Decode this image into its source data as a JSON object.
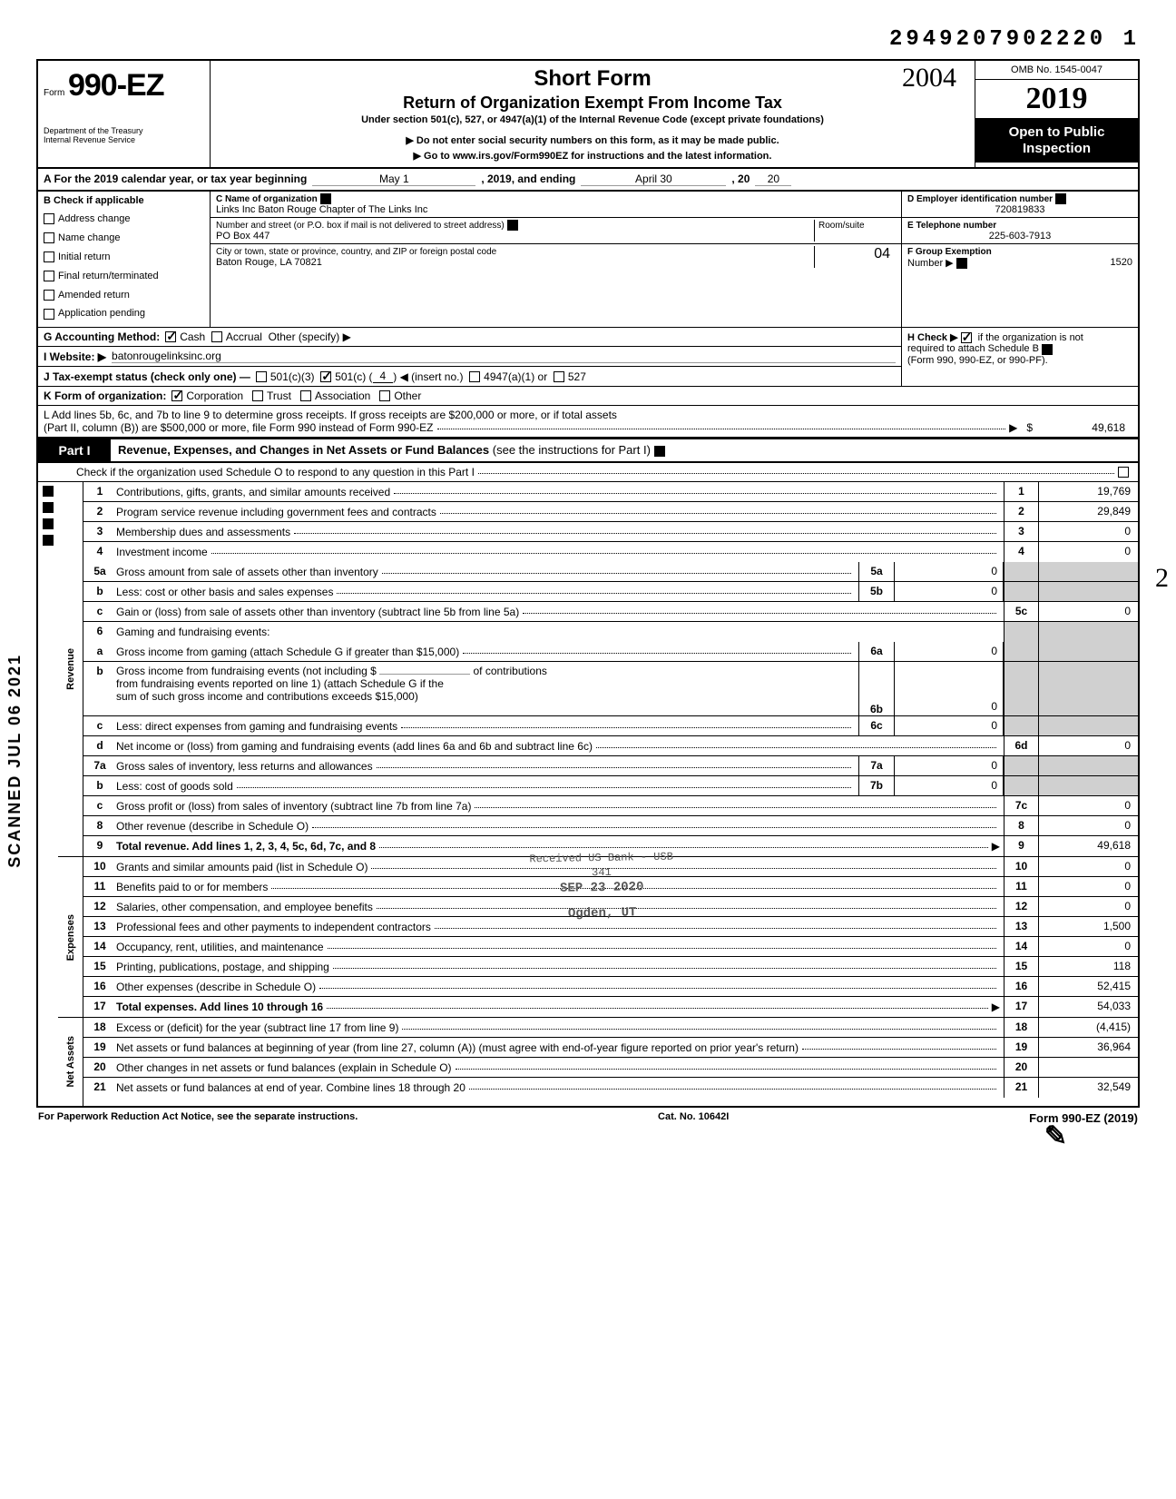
{
  "top_number": "2949207902220 1",
  "handwritten_year": "2004",
  "header": {
    "form_word": "Form",
    "form_number": "990-EZ",
    "dept1": "Department of the Treasury",
    "dept2": "Internal Revenue Service",
    "title_short": "Short Form",
    "title_main": "Return of Organization Exempt From Income Tax",
    "title_under": "Under section 501(c), 527, or 4947(a)(1) of the Internal Revenue Code (except private foundations)",
    "no_ssn": "▶ Do not enter social security numbers on this form, as it may be made public.",
    "goto": "▶ Go to www.irs.gov/Form990EZ for instructions and the latest information.",
    "omb": "OMB No. 1545-0047",
    "year": "2019",
    "open1": "Open to Public",
    "open2": "Inspection"
  },
  "line_a": {
    "prefix": "A  For the 2019 calendar year, or tax year beginning",
    "begin": "May 1",
    "mid": ", 2019, and ending",
    "end_month": "April 30",
    "end_year_prefix": ", 20",
    "end_year": "20"
  },
  "col_b": {
    "heading": "B  Check if applicable",
    "items": [
      "Address change",
      "Name change",
      "Initial return",
      "Final return/terminated",
      "Amended return",
      "Application pending"
    ]
  },
  "col_c": {
    "c_label": "C  Name of organization",
    "name": "Links Inc Baton Rouge Chapter of The Links Inc",
    "street_label": "Number and street (or P.O. box if mail is not delivered to street address)",
    "room_label": "Room/suite",
    "street": "PO Box 447",
    "city_label": "City or town, state or province, country, and ZIP or foreign postal code",
    "city": "Baton Rouge, LA 70821",
    "room": "04"
  },
  "col_de": {
    "d_label": "D Employer identification number",
    "ein": "720819833",
    "e_label": "E Telephone number",
    "phone": "225-603-7913",
    "f_label": "F Group Exemption",
    "f_label2": "Number ▶",
    "group": "1520"
  },
  "line_g": {
    "label": "G  Accounting Method:",
    "cash": "Cash",
    "accrual": "Accrual",
    "other": "Other (specify) ▶"
  },
  "line_h": {
    "text": "H  Check ▶",
    "text2": "if the organization is not",
    "text3": "required to attach Schedule B",
    "text4": "(Form 990, 990-EZ, or 990-PF)."
  },
  "line_i": {
    "label": "I   Website: ▶",
    "value": "batonrougelinksinc.org"
  },
  "line_j": {
    "label": "J  Tax-exempt status (check only one) —",
    "opt1": "501(c)(3)",
    "opt2": "501(c) (",
    "opt2_num": "4",
    "opt2_after": ") ◀ (insert no.)",
    "opt3": "4947(a)(1) or",
    "opt4": "527"
  },
  "line_k": {
    "label": "K  Form of organization:",
    "corp": "Corporation",
    "trust": "Trust",
    "assoc": "Association",
    "other": "Other"
  },
  "line_l": {
    "text1": "L  Add lines 5b, 6c, and 7b to line 9 to determine gross receipts. If gross receipts are $200,000 or more, or if total assets",
    "text2": "(Part II, column (B)) are $500,000 or more, file Form 990 instead of Form 990-EZ",
    "amount": "49,618"
  },
  "part1": {
    "label": "Part I",
    "title": "Revenue, Expenses, and Changes in Net Assets or Fund Balances",
    "note": "(see the instructions for Part I)",
    "check": "Check if the organization used Schedule O to respond to any question in this Part I"
  },
  "side_labels": {
    "revenue": "Revenue",
    "expenses": "Expenses",
    "netassets": "Net Assets"
  },
  "lines": [
    {
      "n": "1",
      "desc": "Contributions, gifts, grants, and similar amounts received",
      "rn": "1",
      "rv": "19,769"
    },
    {
      "n": "2",
      "desc": "Program service revenue including government fees and contracts",
      "rn": "2",
      "rv": "29,849"
    },
    {
      "n": "3",
      "desc": "Membership dues and assessments",
      "rn": "3",
      "rv": "0"
    },
    {
      "n": "4",
      "desc": "Investment income",
      "rn": "4",
      "rv": "0"
    }
  ],
  "line5a": {
    "n": "5a",
    "desc": "Gross amount from sale of assets other than inventory",
    "mn": "5a",
    "mv": "0"
  },
  "line5b": {
    "n": "b",
    "desc": "Less: cost or other basis and sales expenses",
    "mn": "5b",
    "mv": "0"
  },
  "line5c": {
    "n": "c",
    "desc": "Gain or (loss) from sale of assets other than inventory (subtract line 5b from line 5a)",
    "rn": "5c",
    "rv": "0"
  },
  "line6": {
    "n": "6",
    "desc": "Gaming and fundraising events:"
  },
  "line6a": {
    "n": "a",
    "desc": "Gross income from gaming (attach Schedule G if greater than $15,000)",
    "mn": "6a",
    "mv": "0"
  },
  "line6b": {
    "n": "b",
    "desc1": "Gross income from fundraising events (not including  $",
    "desc2": "of contributions",
    "desc3": "from fundraising events reported on line 1) (attach Schedule G if the",
    "desc4": "sum of such gross income and contributions exceeds $15,000)",
    "mn": "6b",
    "mv": "0"
  },
  "line6c": {
    "n": "c",
    "desc": "Less: direct expenses from gaming and fundraising events",
    "mn": "6c",
    "mv": "0"
  },
  "line6d": {
    "n": "d",
    "desc": "Net income or (loss) from gaming and fundraising events (add lines 6a and 6b and subtract line 6c)",
    "rn": "6d",
    "rv": "0"
  },
  "line7a": {
    "n": "7a",
    "desc": "Gross sales of inventory, less returns and allowances",
    "mn": "7a",
    "mv": "0"
  },
  "line7b": {
    "n": "b",
    "desc": "Less: cost of goods sold",
    "mn": "7b",
    "mv": "0"
  },
  "line7c": {
    "n": "c",
    "desc": "Gross profit or (loss) from sales of inventory (subtract line 7b from line 7a)",
    "rn": "7c",
    "rv": "0"
  },
  "line8": {
    "n": "8",
    "desc": "Other revenue (describe in Schedule O)",
    "rn": "8",
    "rv": "0"
  },
  "line9": {
    "n": "9",
    "desc": "Total revenue. Add lines 1, 2, 3, 4, 5c, 6d, 7c, and 8",
    "rn": "9",
    "rv": "49,618",
    "bold": true
  },
  "exp_lines": [
    {
      "n": "10",
      "desc": "Grants and similar amounts paid (list in Schedule O)",
      "rn": "10",
      "rv": "0"
    },
    {
      "n": "11",
      "desc": "Benefits paid to or for members",
      "rn": "11",
      "rv": "0"
    },
    {
      "n": "12",
      "desc": "Salaries, other compensation, and employee benefits",
      "rn": "12",
      "rv": "0"
    },
    {
      "n": "13",
      "desc": "Professional fees and other payments to independent contractors",
      "rn": "13",
      "rv": "1,500"
    },
    {
      "n": "14",
      "desc": "Occupancy, rent, utilities, and maintenance",
      "rn": "14",
      "rv": "0"
    },
    {
      "n": "15",
      "desc": "Printing, publications, postage, and shipping",
      "rn": "15",
      "rv": "118"
    },
    {
      "n": "16",
      "desc": "Other expenses (describe in Schedule O)",
      "rn": "16",
      "rv": "52,415"
    },
    {
      "n": "17",
      "desc": "Total expenses. Add lines 10 through 16",
      "rn": "17",
      "rv": "54,033",
      "bold": true
    }
  ],
  "na_lines": [
    {
      "n": "18",
      "desc": "Excess or (deficit) for the year (subtract line 17 from line 9)",
      "rn": "18",
      "rv": "(4,415)"
    },
    {
      "n": "19",
      "desc": "Net assets or fund balances at beginning of year (from line 27, column (A)) (must agree with end-of-year figure reported on prior year's return)",
      "rn": "19",
      "rv": "36,964"
    },
    {
      "n": "20",
      "desc": "Other changes in net assets or fund balances (explain in Schedule O)",
      "rn": "20",
      "rv": ""
    },
    {
      "n": "21",
      "desc": "Net assets or fund balances at end of year. Combine lines 18 through 20",
      "rn": "21",
      "rv": "32,549"
    }
  ],
  "stamp": {
    "l1": "Received US Bank - USB",
    "l2": "341",
    "l3": "SEP 23 2020",
    "l4": "Ogden, UT"
  },
  "footer": {
    "left": "For Paperwork Reduction Act Notice, see the separate instructions.",
    "mid": "Cat. No. 10642I",
    "right": "Form 990-EZ (2019)"
  },
  "scanned": "SCANNED JUL 06 2021",
  "margin2": "2"
}
